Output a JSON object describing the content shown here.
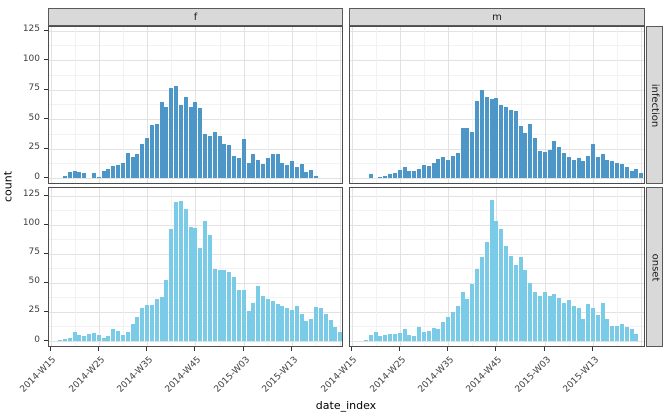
{
  "figure": {
    "y_axis_title": "count",
    "x_axis_title": "date_index",
    "col_facets": [
      "f",
      "m"
    ],
    "row_facets": [
      "infection",
      "onset"
    ],
    "y_ticks": [
      0,
      25,
      50,
      75,
      100,
      125
    ],
    "x_ticks": [
      {
        "week": 15,
        "label": "2014-W15"
      },
      {
        "week": 25,
        "label": "2014-W25"
      },
      {
        "week": 35,
        "label": "2014-W35"
      },
      {
        "week": 45,
        "label": "2014-W45"
      },
      {
        "week": 55,
        "label": "2015-W03"
      },
      {
        "week": 65,
        "label": "2015-W13"
      }
    ]
  },
  "chart_data": {
    "type": "bar",
    "title": "",
    "xlabel": "date_index",
    "ylabel": "count",
    "ylim": [
      0,
      125
    ],
    "grid": "on",
    "legend": "none",
    "x_unit": "ISO week index: 2014-W15 = 15 ... 2014-W52 = 52, 2015-W03 = 55, 2015-W13 = 65",
    "bar_week_step": 1,
    "colors": {
      "infection": "#4d96c8",
      "onset": "#7acbe8"
    },
    "facets": [
      {
        "col": "f",
        "row": "infection",
        "start_week": 18,
        "counts": [
          2,
          5,
          6,
          5,
          4,
          0,
          4,
          1,
          6,
          8,
          10,
          11,
          13,
          21,
          18,
          20,
          29,
          34,
          45,
          46,
          64,
          60,
          76,
          78,
          62,
          69,
          60,
          64,
          59,
          37,
          36,
          39,
          36,
          29,
          28,
          19,
          17,
          33,
          13,
          20,
          15,
          12,
          17,
          20,
          20,
          13,
          11,
          14,
          9,
          12,
          5,
          7,
          2
        ]
      },
      {
        "col": "m",
        "row": "infection",
        "start_week": 19,
        "counts": [
          3,
          0,
          1,
          2,
          3,
          4,
          7,
          9,
          6,
          6,
          8,
          11,
          10,
          13,
          16,
          18,
          15,
          19,
          21,
          42,
          42,
          39,
          65,
          75,
          69,
          67,
          68,
          62,
          60,
          58,
          57,
          44,
          38,
          46,
          34,
          23,
          22,
          24,
          31,
          26,
          21,
          18,
          15,
          17,
          14,
          19,
          29,
          18,
          20,
          15,
          14,
          13,
          12,
          9,
          6,
          8,
          4
        ]
      },
      {
        "col": "f",
        "row": "onset",
        "start_week": 17,
        "counts": [
          1,
          2,
          3,
          8,
          5,
          4,
          6,
          7,
          5,
          3,
          4,
          10,
          9,
          5,
          8,
          15,
          21,
          28,
          31,
          31,
          36,
          38,
          52,
          96,
          119,
          120,
          113,
          98,
          97,
          80,
          103,
          91,
          62,
          61,
          61,
          59,
          55,
          44,
          44,
          26,
          33,
          47,
          39,
          36,
          34,
          32,
          30,
          28,
          27,
          30,
          23,
          17,
          19,
          29,
          28,
          23,
          18,
          12,
          8
        ]
      },
      {
        "col": "m",
        "row": "onset",
        "start_week": 18,
        "counts": [
          1,
          5,
          8,
          4,
          5,
          6,
          6,
          7,
          10,
          5,
          4,
          12,
          8,
          9,
          11,
          10,
          16,
          21,
          25,
          30,
          42,
          36,
          49,
          62,
          72,
          85,
          121,
          103,
          96,
          82,
          73,
          65,
          72,
          61,
          50,
          42,
          39,
          42,
          39,
          40,
          37,
          33,
          35,
          30,
          28,
          19,
          32,
          28,
          22,
          33,
          19,
          13,
          13,
          15,
          12,
          10,
          6
        ]
      }
    ]
  }
}
